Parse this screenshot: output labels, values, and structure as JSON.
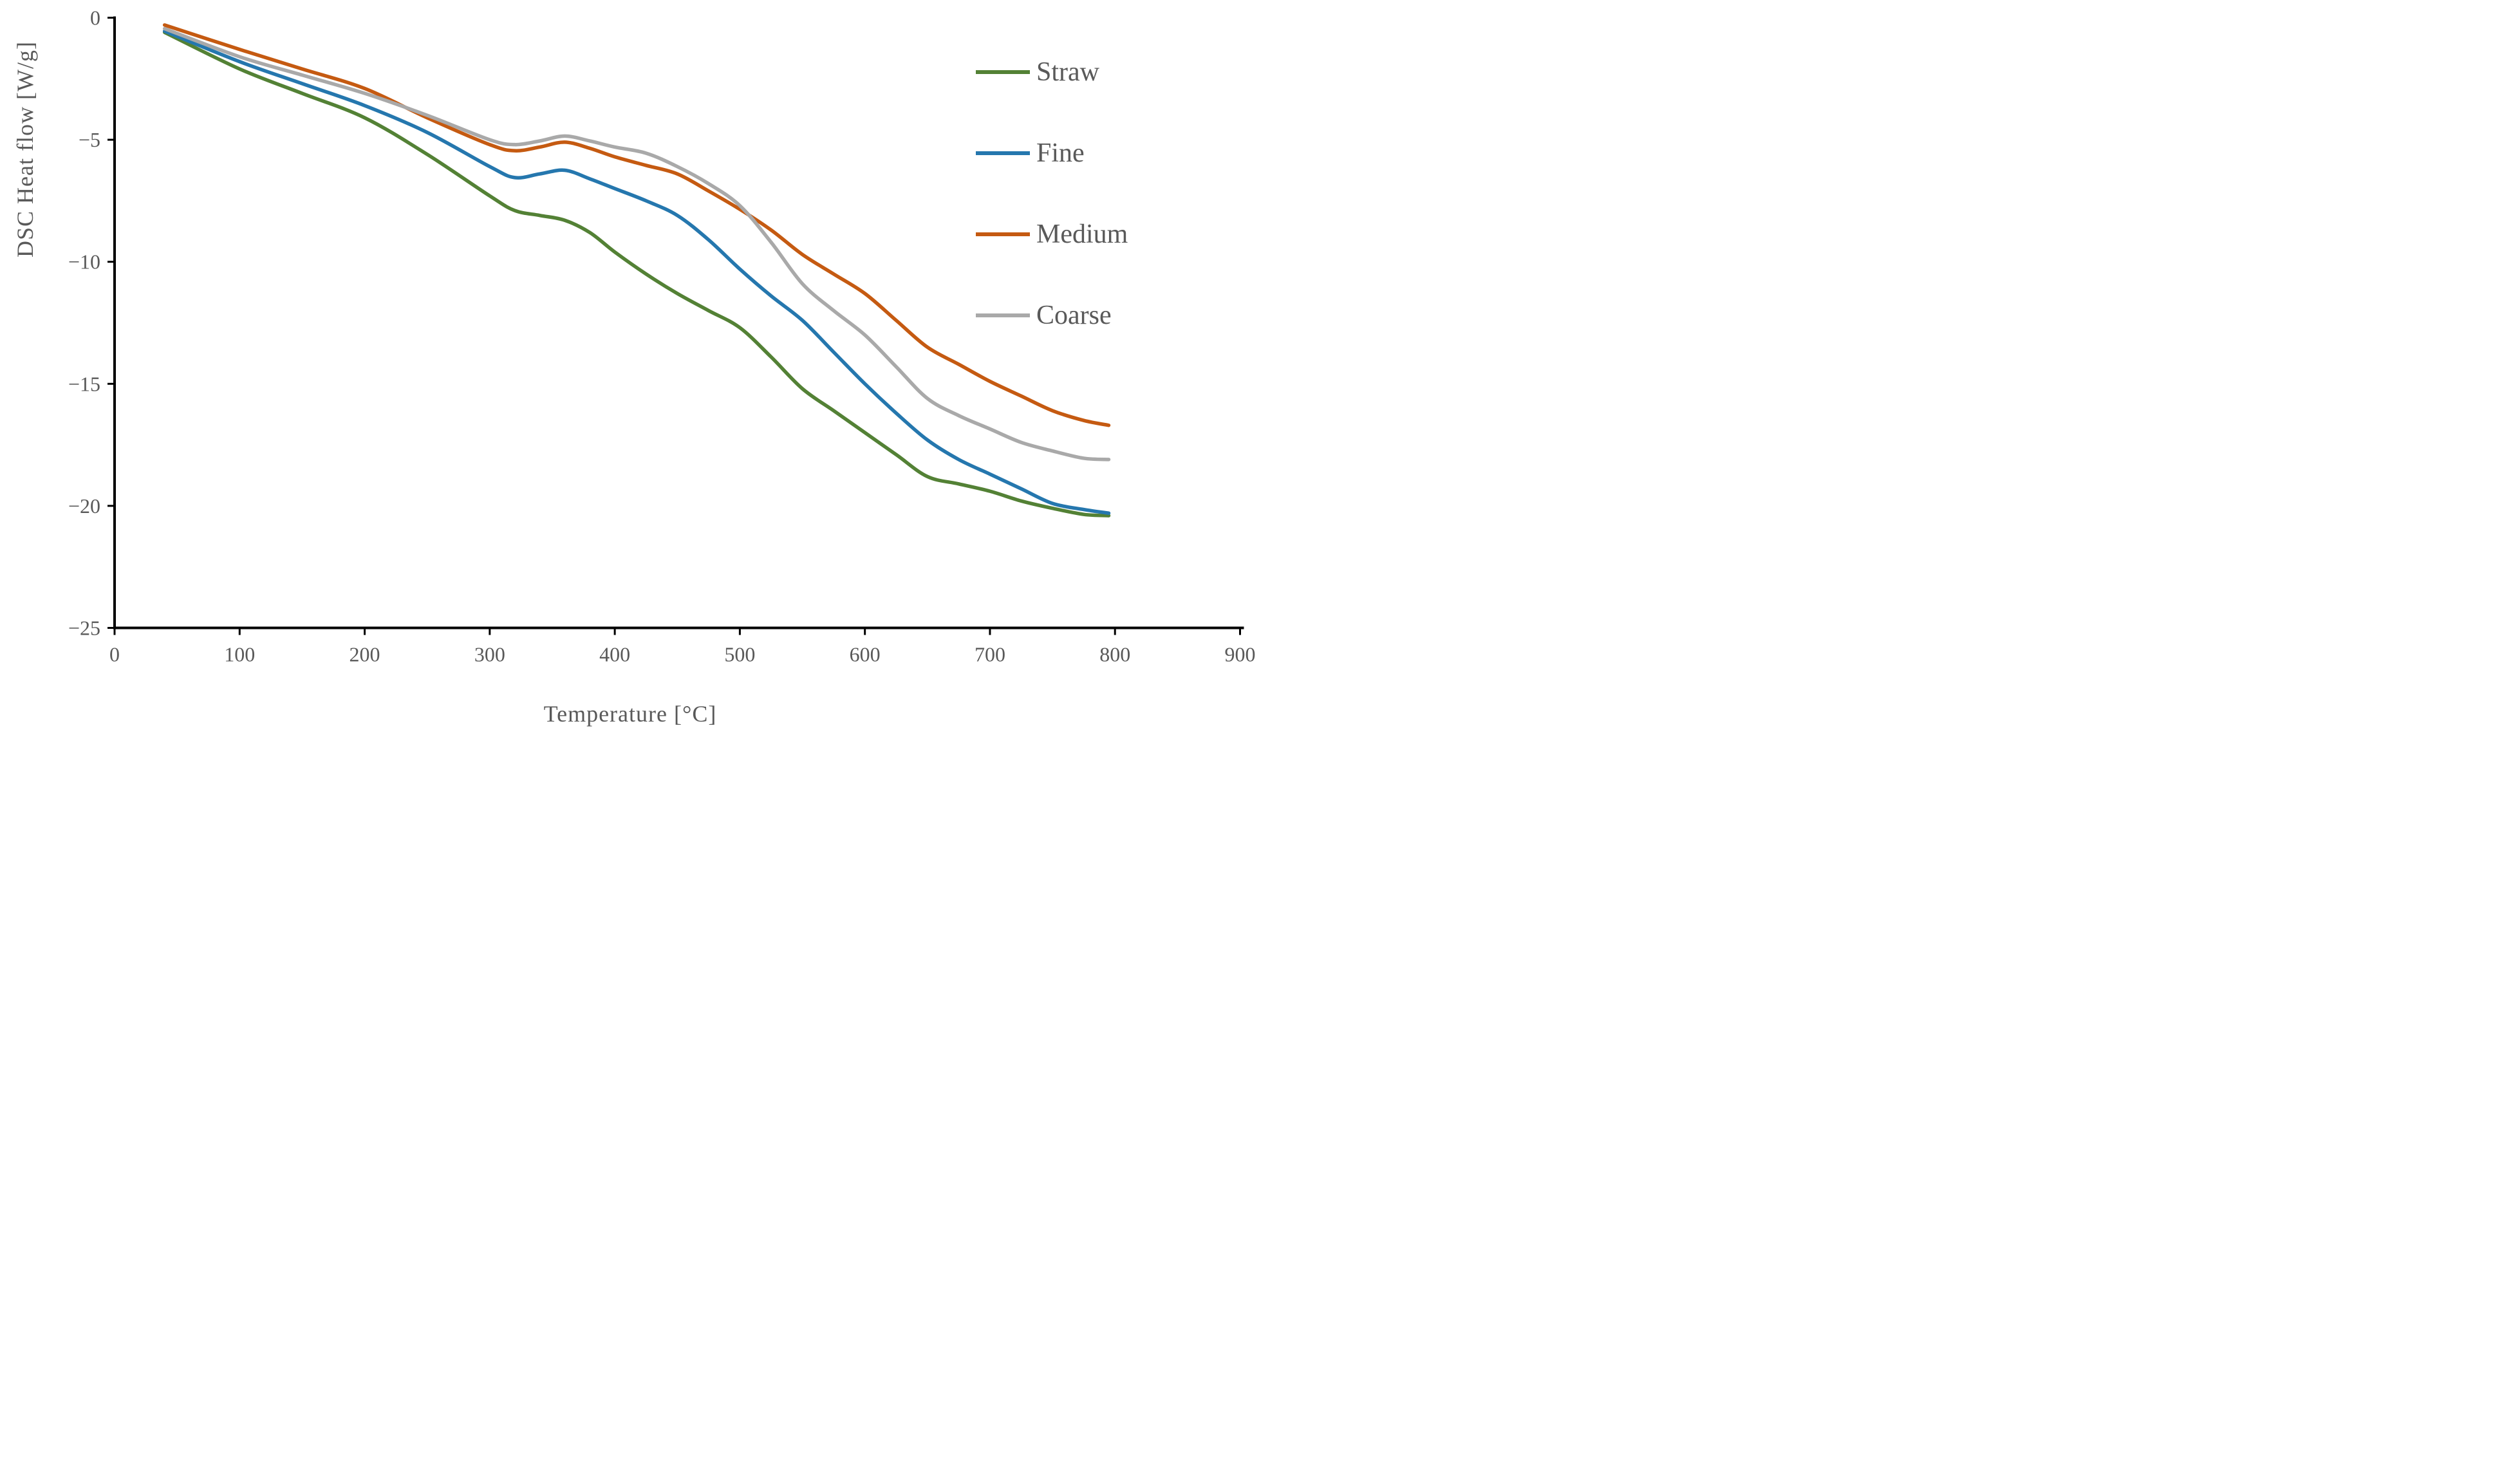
{
  "chart_data": {
    "type": "line",
    "title": "",
    "xlabel": "Temperature [°C]",
    "ylabel": "DSC Heat flow [W/g]",
    "xlim": [
      0,
      900
    ],
    "ylim": [
      -25,
      0
    ],
    "grid": false,
    "legend_position": "right",
    "axis_color": "#000000",
    "label_color": "#595959",
    "x_ticks": [
      0,
      100,
      200,
      300,
      400,
      500,
      600,
      700,
      800,
      900
    ],
    "x_tick_labels": [
      "0",
      "100",
      "200",
      "300",
      "400",
      "500",
      "600",
      "700",
      "800",
      "900"
    ],
    "y_ticks": [
      0,
      -5,
      -10,
      -15,
      -20,
      -25
    ],
    "y_tick_labels": [
      "0",
      "−5",
      "−10",
      "−15",
      "−20",
      "−25"
    ],
    "x": [
      40,
      100,
      150,
      200,
      250,
      300,
      320,
      340,
      360,
      380,
      400,
      425,
      450,
      475,
      500,
      525,
      550,
      575,
      600,
      625,
      650,
      675,
      700,
      725,
      750,
      775,
      795
    ],
    "series": [
      {
        "name": "Straw",
        "color": "#538135",
        "values": [
          -0.6,
          -2.1,
          -3.1,
          -4.1,
          -5.6,
          -7.3,
          -7.9,
          -8.1,
          -8.3,
          -8.8,
          -9.6,
          -10.5,
          -11.3,
          -12.0,
          -12.7,
          -13.9,
          -15.2,
          -16.1,
          -17.0,
          -17.9,
          -18.8,
          -19.1,
          -19.4,
          -19.8,
          -20.1,
          -20.35,
          -20.4
        ]
      },
      {
        "name": "Fine",
        "color": "#2577AE",
        "values": [
          -0.55,
          -1.8,
          -2.7,
          -3.6,
          -4.7,
          -6.1,
          -6.55,
          -6.4,
          -6.25,
          -6.6,
          -7.0,
          -7.5,
          -8.1,
          -9.1,
          -10.3,
          -11.4,
          -12.4,
          -13.7,
          -15.0,
          -16.2,
          -17.3,
          -18.1,
          -18.7,
          -19.3,
          -19.9,
          -20.15,
          -20.3
        ]
      },
      {
        "name": "Medium",
        "color": "#C55A11",
        "values": [
          -0.3,
          -1.3,
          -2.1,
          -2.9,
          -4.1,
          -5.2,
          -5.45,
          -5.3,
          -5.1,
          -5.35,
          -5.7,
          -6.05,
          -6.4,
          -7.1,
          -7.85,
          -8.7,
          -9.7,
          -10.5,
          -11.3,
          -12.4,
          -13.5,
          -14.2,
          -14.9,
          -15.5,
          -16.1,
          -16.5,
          -16.7
        ]
      },
      {
        "name": "Coarse",
        "color": "#A9A9A9",
        "values": [
          -0.45,
          -1.6,
          -2.35,
          -3.1,
          -4.0,
          -5.0,
          -5.2,
          -5.05,
          -4.85,
          -5.05,
          -5.3,
          -5.55,
          -6.1,
          -6.8,
          -7.7,
          -9.2,
          -10.9,
          -12.0,
          -13.0,
          -14.3,
          -15.6,
          -16.3,
          -16.85,
          -17.4,
          -17.75,
          -18.05,
          -18.1
        ]
      }
    ]
  }
}
